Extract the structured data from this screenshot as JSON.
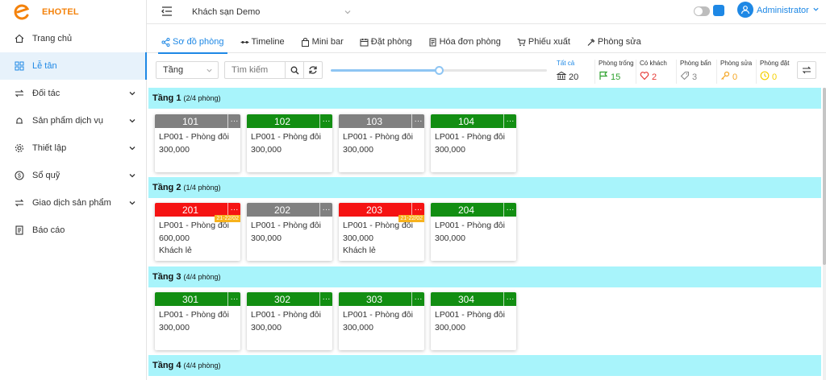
{
  "brand": {
    "name": "EHOTEL",
    "logo_color": "#f4820b"
  },
  "sidebar": {
    "items": [
      {
        "label": "Trang chủ",
        "icon": "home-icon",
        "active": false,
        "expandable": false
      },
      {
        "label": "Lễ tân",
        "icon": "grid-icon",
        "active": true,
        "expandable": false
      },
      {
        "label": "Đối tác",
        "icon": "swap-icon",
        "active": false,
        "expandable": true
      },
      {
        "label": "Sản phẩm dịch vụ",
        "icon": "bell-icon",
        "active": false,
        "expandable": true
      },
      {
        "label": "Thiết lập",
        "icon": "gear-icon",
        "active": false,
        "expandable": true
      },
      {
        "label": "Sổ quỹ",
        "icon": "dollar-icon",
        "active": false,
        "expandable": true
      },
      {
        "label": "Giao dịch sản phẩm",
        "icon": "swap-icon",
        "active": false,
        "expandable": true
      },
      {
        "label": "Báo cáo",
        "icon": "document-icon",
        "active": false,
        "expandable": false
      }
    ]
  },
  "header": {
    "hotel": "Khách sạn Demo",
    "user": "Administrator"
  },
  "tabs": [
    {
      "label": "Sơ đồ phòng",
      "icon": "share-icon",
      "active": true
    },
    {
      "label": "Timeline",
      "icon": "timeline-icon",
      "active": false
    },
    {
      "label": "Mini bar",
      "icon": "bag-icon",
      "active": false
    },
    {
      "label": "Đặt phòng",
      "icon": "calendar-icon",
      "active": false
    },
    {
      "label": "Hóa đơn phòng",
      "icon": "receipt-icon",
      "active": false
    },
    {
      "label": "Phiếu xuất",
      "icon": "cart-icon",
      "active": false
    },
    {
      "label": "Phòng sửa",
      "icon": "hammer-icon",
      "active": false
    }
  ],
  "filters": {
    "floor_select": "Tầng",
    "search_placeholder": "Tìm kiếm",
    "slider_level": 0.5
  },
  "stats": [
    {
      "label": "Tất cả",
      "value": "20",
      "icon": "bank-icon",
      "color": "#333333"
    },
    {
      "label": "Phòng trống",
      "value": "15",
      "icon": "flag-icon",
      "color": "#2ea12e"
    },
    {
      "label": "Có khách",
      "value": "2",
      "icon": "heart-icon",
      "color": "#e53935"
    },
    {
      "label": "Phòng bẩn",
      "value": "3",
      "icon": "tag-icon",
      "color": "#888888"
    },
    {
      "label": "Phòng sửa",
      "value": "0",
      "icon": "key-icon",
      "color": "#f5a623"
    },
    {
      "label": "Phòng đặt",
      "value": "0",
      "icon": "clock-icon",
      "color": "#f5d000"
    }
  ],
  "colors": {
    "accent": "#1e88e5",
    "floor_header": "#a8f4fb",
    "room_vacant": "#128e12",
    "room_occupied": "#f51313",
    "room_dirty": "#808080",
    "date_badge": "#f7b21c"
  },
  "floors": [
    {
      "name": "Tầng 1",
      "count": "(2/4 phòng)",
      "rooms": [
        {
          "number": "101",
          "status": "gray",
          "type": "LP001 - Phòng đôi",
          "price": "300,000",
          "guest": "",
          "date": ""
        },
        {
          "number": "102",
          "status": "green",
          "type": "LP001 - Phòng đôi",
          "price": "300,000",
          "guest": "",
          "date": ""
        },
        {
          "number": "103",
          "status": "gray",
          "type": "LP001 - Phòng đôi",
          "price": "300,000",
          "guest": "",
          "date": ""
        },
        {
          "number": "104",
          "status": "green",
          "type": "LP001 - Phòng đôi",
          "price": "300,000",
          "guest": "",
          "date": ""
        }
      ]
    },
    {
      "name": "Tầng 2",
      "count": "(1/4 phòng)",
      "rooms": [
        {
          "number": "201",
          "status": "red",
          "type": "LP001 - Phòng đôi",
          "price": "600,000",
          "guest": "Khách lẻ",
          "date": "21-22/02"
        },
        {
          "number": "202",
          "status": "gray",
          "type": "LP001 - Phòng đôi",
          "price": "300,000",
          "guest": "",
          "date": ""
        },
        {
          "number": "203",
          "status": "red",
          "type": "LP001 - Phòng đôi",
          "price": "300,000",
          "guest": "Khách lẻ",
          "date": "21-22/02"
        },
        {
          "number": "204",
          "status": "green",
          "type": "LP001 - Phòng đôi",
          "price": "300,000",
          "guest": "",
          "date": ""
        }
      ]
    },
    {
      "name": "Tầng 3",
      "count": "(4/4 phòng)",
      "rooms": [
        {
          "number": "301",
          "status": "green",
          "type": "LP001 - Phòng đôi",
          "price": "300,000",
          "guest": "",
          "date": ""
        },
        {
          "number": "302",
          "status": "green",
          "type": "LP001 - Phòng đôi",
          "price": "300,000",
          "guest": "",
          "date": ""
        },
        {
          "number": "303",
          "status": "green",
          "type": "LP001 - Phòng đôi",
          "price": "300,000",
          "guest": "",
          "date": ""
        },
        {
          "number": "304",
          "status": "green",
          "type": "LP001 - Phòng đôi",
          "price": "300,000",
          "guest": "",
          "date": ""
        }
      ]
    },
    {
      "name": "Tầng 4",
      "count": "(4/4 phòng)",
      "rooms": []
    }
  ]
}
